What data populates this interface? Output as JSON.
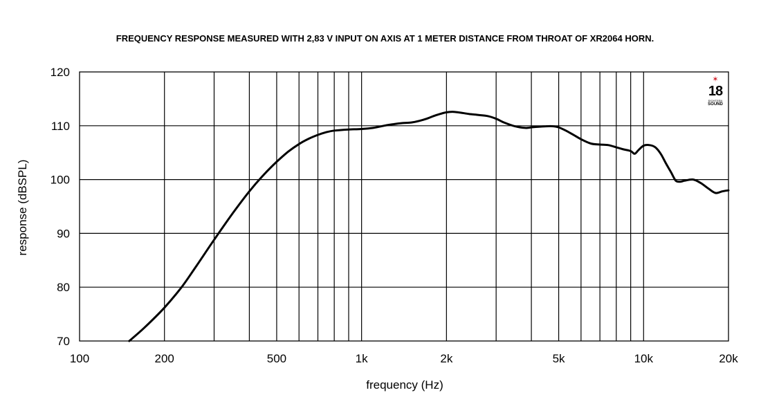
{
  "chart_data": {
    "type": "line",
    "title": "FREQUENCY RESPONSE MEASURED WITH 2,83 V INPUT ON AXIS AT 1 METER DISTANCE FROM THROAT OF XR2064 HORN.",
    "xlabel": "frequency (Hz)",
    "ylabel": "response (dBSPL)",
    "x_scale": "log",
    "xlim": [
      100,
      20000
    ],
    "ylim": [
      70,
      120
    ],
    "x_ticks": [
      {
        "value": 100,
        "label": "100"
      },
      {
        "value": 200,
        "label": "200"
      },
      {
        "value": 500,
        "label": "500"
      },
      {
        "value": 1000,
        "label": "1k"
      },
      {
        "value": 2000,
        "label": "2k"
      },
      {
        "value": 5000,
        "label": "5k"
      },
      {
        "value": 10000,
        "label": "10k"
      },
      {
        "value": 20000,
        "label": "20k"
      }
    ],
    "y_ticks": [
      {
        "value": 70,
        "label": "70"
      },
      {
        "value": 80,
        "label": "80"
      },
      {
        "value": 90,
        "label": "90"
      },
      {
        "value": 100,
        "label": "100"
      },
      {
        "value": 110,
        "label": "110"
      },
      {
        "value": 120,
        "label": "120"
      }
    ],
    "x_gridlines": [
      200,
      300,
      400,
      500,
      600,
      700,
      800,
      900,
      1000,
      2000,
      3000,
      4000,
      5000,
      6000,
      7000,
      8000,
      9000,
      10000
    ],
    "y_gridlines": [
      80,
      90,
      100,
      110
    ],
    "grid": true,
    "series": [
      {
        "color": "#000000",
        "x": [
          150,
          170,
          200,
          230,
          260,
          300,
          350,
          400,
          450,
          500,
          550,
          600,
          650,
          700,
          750,
          800,
          900,
          1000,
          1100,
          1200,
          1300,
          1400,
          1500,
          1600,
          1700,
          1800,
          1900,
          2000,
          2100,
          2200,
          2400,
          2600,
          2800,
          3000,
          3200,
          3500,
          3800,
          4000,
          4200,
          4500,
          4800,
          5000,
          5300,
          5600,
          6000,
          6500,
          7000,
          7500,
          8000,
          8500,
          9000,
          9300,
          9600,
          10000,
          10500,
          11000,
          11500,
          12000,
          12500,
          13000,
          13500,
          14000,
          15000,
          16000,
          17000,
          18000,
          19000,
          20000
        ],
        "y": [
          70.0,
          72.5,
          76.2,
          80.0,
          84.0,
          88.8,
          93.8,
          97.8,
          100.9,
          103.3,
          105.2,
          106.6,
          107.6,
          108.3,
          108.8,
          109.1,
          109.3,
          109.4,
          109.6,
          110.0,
          110.3,
          110.5,
          110.6,
          110.9,
          111.3,
          111.8,
          112.2,
          112.5,
          112.6,
          112.5,
          112.2,
          112.0,
          111.8,
          111.3,
          110.6,
          109.9,
          109.6,
          109.7,
          109.8,
          109.9,
          109.9,
          109.7,
          109.1,
          108.4,
          107.5,
          106.7,
          106.5,
          106.4,
          106.0,
          105.6,
          105.3,
          104.8,
          105.5,
          106.3,
          106.4,
          106.0,
          104.8,
          103.0,
          101.4,
          99.8,
          99.6,
          99.8,
          100.0,
          99.3,
          98.3,
          97.5,
          97.8,
          98.0
        ]
      }
    ]
  },
  "logo": {
    "number": "18",
    "subtitle": "EIGHTEEN",
    "brand": "SOUND"
  }
}
